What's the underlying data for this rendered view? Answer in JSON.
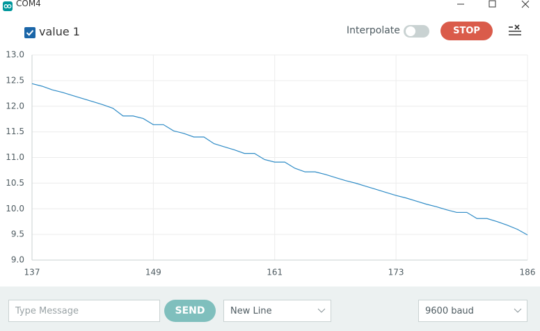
{
  "window": {
    "title": "COM4"
  },
  "toolbar": {
    "interpolate_label": "Interpolate",
    "stop_button": "STOP"
  },
  "footer": {
    "message_placeholder": "Type Message",
    "send_button": "SEND",
    "line_ending": "New Line",
    "baud_rate": "9600 baud"
  },
  "chart_data": {
    "type": "line",
    "x": [
      137,
      138,
      139,
      140,
      141,
      142,
      143,
      144,
      145,
      146,
      147,
      148,
      149,
      150,
      151,
      152,
      153,
      154,
      155,
      156,
      157,
      158,
      159,
      160,
      161,
      162,
      163,
      164,
      165,
      166,
      167,
      168,
      169,
      170,
      171,
      172,
      173,
      174,
      175,
      176,
      177,
      178,
      179,
      180,
      181,
      182,
      183,
      184,
      185,
      186
    ],
    "series": [
      {
        "name": "value 1",
        "color": "#2e8bc6",
        "values": [
          12.44,
          12.39,
          12.32,
          12.27,
          12.21,
          12.15,
          12.09,
          12.03,
          11.96,
          11.81,
          11.81,
          11.76,
          11.64,
          11.64,
          11.52,
          11.47,
          11.4,
          11.4,
          11.27,
          11.21,
          11.15,
          11.08,
          11.08,
          10.96,
          10.91,
          10.91,
          10.79,
          10.72,
          10.72,
          10.67,
          10.61,
          10.55,
          10.5,
          10.44,
          10.38,
          10.32,
          10.26,
          10.21,
          10.15,
          10.09,
          10.04,
          9.98,
          9.93,
          9.93,
          9.81,
          9.81,
          9.75,
          9.68,
          9.6,
          9.49
        ]
      }
    ],
    "xlim": [
      137,
      186
    ],
    "xticks": [
      137,
      149,
      161,
      173,
      186
    ],
    "ylim": [
      9,
      13
    ],
    "yticks": [
      {
        "value": 9,
        "label": "9.0"
      },
      9.5,
      {
        "value": 10,
        "label": "10.0"
      },
      10.5,
      {
        "value": 11,
        "label": "11.0"
      },
      11.5,
      {
        "value": 12,
        "label": "12.0"
      },
      12.5,
      {
        "value": 13,
        "label": "13.0"
      }
    ],
    "grid": true
  }
}
